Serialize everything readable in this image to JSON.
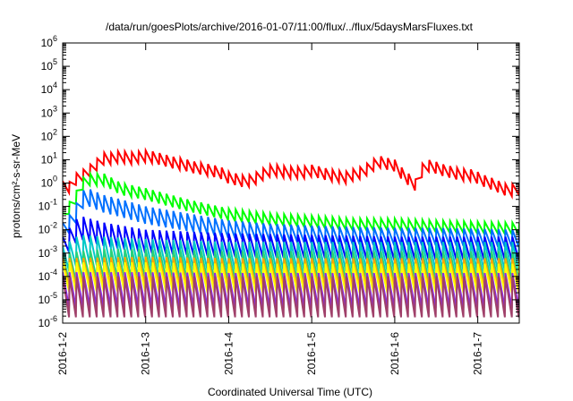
{
  "chart_data": {
    "type": "line",
    "title": "/data/run/goesPlots/archive/2016-01-07/11:00/flux/../flux/5daysMarsFluxes.txt",
    "xlabel": "Coordinated Universal Time (UTC)",
    "ylabel": "protons/cm²-s-sr-MeV",
    "y_scale": "log",
    "ylim": [
      1e-06,
      1000000.0
    ],
    "xlim": [
      0,
      5.5
    ],
    "x_ticks": [
      {
        "value": 0,
        "label": "2016-1-2"
      },
      {
        "value": 1,
        "label": "2016-1-3"
      },
      {
        "value": 2,
        "label": "2016-1-4"
      },
      {
        "value": 3,
        "label": "2016-1-5"
      },
      {
        "value": 4,
        "label": "2016-1-6"
      },
      {
        "value": 5,
        "label": "2016-1-7"
      }
    ],
    "y_ticks": [
      {
        "base": "10",
        "exp": "-6"
      },
      {
        "base": "10",
        "exp": "-5"
      },
      {
        "base": "10",
        "exp": "-4"
      },
      {
        "base": "10",
        "exp": "-3"
      },
      {
        "base": "10",
        "exp": "-2"
      },
      {
        "base": "10",
        "exp": "-1"
      },
      {
        "base": "10",
        "exp": "0"
      },
      {
        "base": "10",
        "exp": "1"
      },
      {
        "base": "10",
        "exp": "2"
      },
      {
        "base": "10",
        "exp": "3"
      },
      {
        "base": "10",
        "exp": "4"
      },
      {
        "base": "10",
        "exp": "5"
      },
      {
        "base": "10",
        "exp": "6"
      }
    ],
    "grid": false,
    "legend": "none",
    "series_note": "sawtooth curves, peak (top) values read at points; each series oscillates roughly one decade below its peak",
    "series": [
      {
        "color": "#ff0000",
        "x": [
          0,
          0.05,
          0.1,
          0.15,
          0.2,
          0.3,
          0.4,
          0.5,
          0.6,
          0.7,
          0.8,
          0.9,
          1.0,
          1.1,
          1.2,
          1.3,
          1.4,
          1.5,
          1.6,
          1.7,
          1.8,
          1.9,
          2.0,
          2.1,
          2.2,
          2.3,
          2.4,
          2.5,
          2.6,
          2.7,
          2.8,
          2.9,
          3.0,
          3.1,
          3.2,
          3.3,
          3.4,
          3.5,
          3.6,
          3.7,
          3.8,
          3.9,
          4.0,
          4.1,
          4.2,
          4.28,
          4.35,
          4.4,
          4.5,
          4.6,
          4.7,
          4.8,
          4.9,
          5.0,
          5.1,
          5.2,
          5.3,
          5.4,
          5.45,
          5.5
        ],
        "y": [
          1.2,
          1.5,
          1.0,
          2.5,
          3,
          5,
          10,
          20,
          20,
          25,
          20,
          22,
          25,
          22,
          18,
          14,
          12,
          10,
          8,
          7,
          6,
          5,
          3,
          2.5,
          2,
          2.5,
          4,
          6,
          6,
          5,
          5,
          5,
          6,
          5,
          4,
          3.5,
          3,
          4,
          5,
          8,
          15,
          12,
          10,
          4,
          2,
          1.2,
          12,
          10,
          8,
          6,
          5,
          4,
          4,
          3,
          2,
          1.5,
          1.0,
          0.8,
          1.2,
          1.0
        ],
        "amp": 2
      },
      {
        "color": "#00ff00",
        "x": [
          0,
          0.1,
          0.15,
          0.2,
          0.3,
          0.5,
          0.7,
          1.0,
          1.5,
          2.0,
          2.5,
          3.0,
          3.5,
          4.0,
          4.5,
          5.0,
          5.5
        ],
        "y": [
          0.05,
          0.2,
          0.3,
          1.2,
          2.5,
          2.5,
          1.0,
          0.6,
          0.2,
          0.08,
          0.05,
          0.04,
          0.03,
          0.03,
          0.025,
          0.022,
          0.02
        ],
        "amp": 2
      },
      {
        "color": "#0070ff",
        "x": [
          0,
          0.1,
          0.15,
          0.2,
          0.3,
          0.5,
          0.7,
          1.0,
          1.5,
          2.0,
          2.5,
          3.0,
          3.5,
          4.0,
          4.5,
          5.0,
          5.5
        ],
        "y": [
          0.02,
          0.05,
          0.08,
          0.4,
          0.6,
          0.3,
          0.2,
          0.1,
          0.05,
          0.025,
          0.018,
          0.015,
          0.013,
          0.012,
          0.012,
          0.011,
          0.01
        ],
        "amp": 3
      },
      {
        "color": "#0000ff",
        "x": [
          0,
          0.2,
          0.5,
          1.0,
          2.0,
          3.0,
          4.0,
          5.0,
          5.5
        ],
        "y": [
          0.005,
          0.04,
          0.02,
          0.01,
          0.007,
          0.006,
          0.005,
          0.005,
          0.005
        ],
        "amp": 4
      },
      {
        "color": "#00c8c8",
        "x": [
          0,
          0.2,
          0.5,
          1.0,
          2.0,
          3.0,
          4.0,
          5.0,
          5.5
        ],
        "y": [
          0.002,
          0.006,
          0.005,
          0.004,
          0.003,
          0.003,
          0.003,
          0.003,
          0.003
        ],
        "amp": 5
      },
      {
        "color": "#28d278",
        "x": [
          0,
          0.5,
          1.0,
          2.0,
          3.0,
          4.0,
          5.0,
          5.5
        ],
        "y": [
          0.001,
          0.0015,
          0.0015,
          0.0012,
          0.0012,
          0.0012,
          0.0012,
          0.0012
        ],
        "amp": 5
      },
      {
        "color": "#ffa500",
        "x": [
          0,
          1.0,
          2.0,
          3.0,
          4.0,
          5.0,
          5.5
        ],
        "y": [
          0.0006,
          0.0007,
          0.0006,
          0.0006,
          0.0006,
          0.0006,
          0.0006
        ],
        "amp": 5
      },
      {
        "color": "#ffff00",
        "x": [
          0,
          1.0,
          2.0,
          3.0,
          4.0,
          5.0,
          5.5
        ],
        "y": [
          0.0004,
          0.0004,
          0.00035,
          0.00035,
          0.00035,
          0.00035,
          0.00035
        ],
        "amp": 5
      },
      {
        "color": "#8a2be2",
        "x": [
          0,
          1.0,
          2.0,
          3.0,
          4.0,
          5.0,
          5.5
        ],
        "y": [
          0.00015,
          0.00015,
          0.00014,
          0.00014,
          0.00014,
          0.00014,
          0.00014
        ],
        "amp": 6
      },
      {
        "color": "#a0406a",
        "x": [
          0,
          1.0,
          2.0,
          3.0,
          4.0,
          5.0,
          5.5
        ],
        "y": [
          0.0001,
          0.0001,
          0.0001,
          0.0001,
          0.0001,
          0.0001,
          0.0001
        ],
        "amp": 7
      }
    ]
  }
}
